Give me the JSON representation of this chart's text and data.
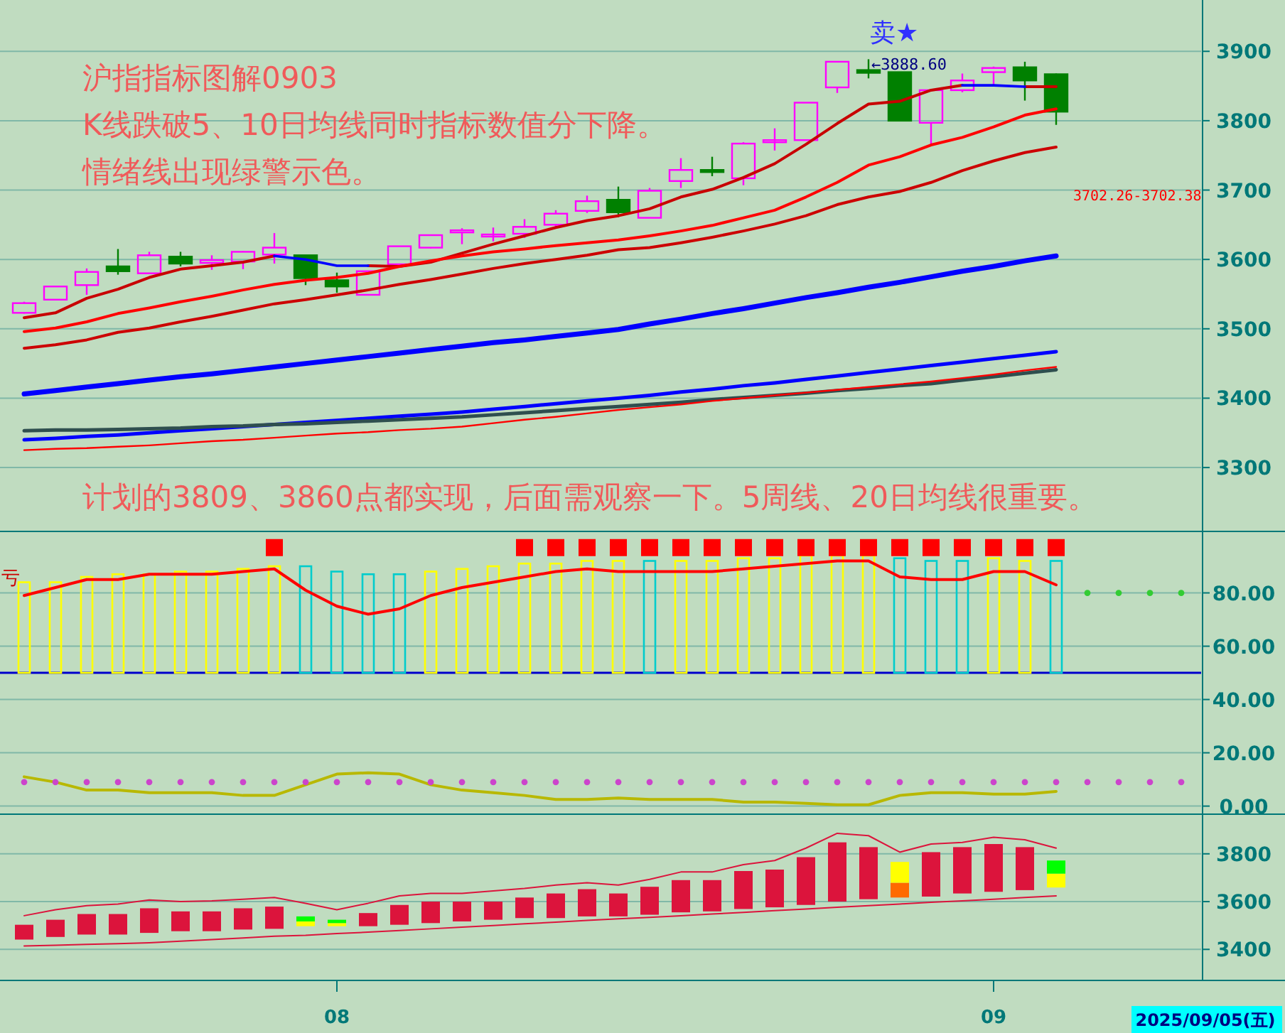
{
  "chart_data": [
    {
      "type": "candlestick",
      "title": "沪指指标图解0903",
      "subtitle": "K线跌破5、10日均线同时指标数值分下降。",
      "categories": [
        null,
        null,
        null,
        null,
        null,
        null,
        null,
        null,
        null,
        null,
        null,
        null,
        null,
        null,
        null,
        null,
        null,
        null,
        null,
        null,
        null,
        null,
        null,
        null,
        null,
        null,
        null,
        null,
        null,
        null,
        null,
        null,
        null,
        null,
        null,
        null,
        null,
        null
      ],
      "ohlc": [
        [
          3523,
          3539,
          3522,
          3537
        ],
        [
          3542,
          3561,
          3542,
          3561
        ],
        [
          3563,
          3587,
          3549,
          3582
        ],
        [
          3590,
          3615,
          3578,
          3583
        ],
        [
          3580,
          3611,
          3580,
          3606
        ],
        [
          3604,
          3611,
          3590,
          3594
        ],
        [
          3595,
          3606,
          3585,
          3599
        ],
        [
          3597,
          3612,
          3586,
          3611
        ],
        [
          3607,
          3638,
          3594,
          3617
        ],
        [
          3606,
          3606,
          3563,
          3573
        ],
        [
          3570,
          3581,
          3552,
          3561
        ],
        [
          3549,
          3583,
          3549,
          3583
        ],
        [
          3593,
          3619,
          3592,
          3619
        ],
        [
          3617,
          3635,
          3616,
          3635
        ],
        [
          3639,
          3645,
          3622,
          3642
        ],
        [
          3635,
          3646,
          3626,
          3636
        ],
        [
          3637,
          3658,
          3631,
          3647
        ],
        [
          3650,
          3671,
          3647,
          3666
        ],
        [
          3670,
          3692,
          3667,
          3684
        ],
        [
          3686,
          3705,
          3661,
          3668
        ],
        [
          3660,
          3703,
          3660,
          3699
        ],
        [
          3713,
          3746,
          3703,
          3729
        ],
        [
          3729,
          3748,
          3720,
          3728
        ],
        [
          3717,
          3769,
          3707,
          3767
        ],
        [
          3771,
          3789,
          3757,
          3772
        ],
        [
          3772,
          3826,
          3772,
          3826
        ],
        [
          3848,
          3885,
          3840,
          3885
        ],
        [
          3873,
          3888.6,
          3861,
          3869
        ],
        [
          3870,
          3870,
          3800,
          3800
        ],
        [
          3797,
          3844,
          3766,
          3844
        ],
        [
          3844,
          3868,
          3841,
          3858
        ],
        [
          3870,
          3878,
          3851,
          3876
        ],
        [
          3877,
          3885,
          3829,
          3858
        ],
        [
          3867,
          3868,
          3794,
          3813
        ],
        null,
        null,
        null,
        null
      ],
      "colors": [
        "#ff00ff",
        "#ff00ff",
        "#ff00ff",
        "#008000",
        "#ff00ff",
        "#008000",
        "#ff00ff",
        "#ff00ff",
        "#ff00ff",
        "#008000",
        "#008000",
        "#ff00ff",
        "#ff00ff",
        "#ff00ff",
        "#ff00ff",
        "#ff00ff",
        "#ff00ff",
        "#ff00ff",
        "#ff00ff",
        "#008000",
        "#ff00ff",
        "#ff00ff",
        "#008000",
        "#ff00ff",
        "#ff00ff",
        "#ff00ff",
        "#ff00ff",
        "#008000",
        "#008000",
        "#ff00ff",
        "#ff00ff",
        "#ff00ff",
        "#008000",
        "#008000",
        null,
        null,
        null,
        null
      ],
      "series": [
        {
          "type": "line",
          "color": "#c80000",
          "values": [
            3516,
            3523,
            3544,
            3557,
            3574,
            3586,
            3591,
            3596,
            3605,
            null,
            null,
            3591,
            3590,
            3596,
            3609,
            3622,
            3634,
            3646,
            3656,
            3663,
            3673,
            3690,
            3701,
            3718,
            3738,
            3766,
            3796,
            3824,
            3828,
            3844,
            3851,
            null,
            3849,
            3849,
            null,
            null,
            null,
            null
          ]
        },
        {
          "type": "line",
          "color": "#0000ff",
          "values": [
            null,
            null,
            null,
            null,
            null,
            null,
            null,
            null,
            3605,
            3600,
            3591,
            3591,
            null,
            null,
            null,
            null,
            null,
            null,
            null,
            null,
            null,
            null,
            null,
            null,
            null,
            null,
            null,
            null,
            null,
            null,
            3851,
            3851,
            3849,
            null,
            null,
            null,
            null,
            null
          ]
        },
        {
          "type": "line",
          "color": "#ff0000",
          "values": [
            3496,
            3501,
            3510,
            3522,
            3530,
            3539,
            3547,
            3556,
            3564,
            3570,
            3574,
            3580,
            3590,
            3598,
            3605,
            3611,
            3615,
            3620,
            3624,
            3628,
            3634,
            3641,
            3649,
            3660,
            3671,
            3690,
            3711,
            3736,
            3748,
            3765,
            3776,
            3791,
            3808,
            3817,
            null,
            null,
            null,
            null
          ]
        },
        {
          "type": "line",
          "color": "#cc0000",
          "values": [
            3472,
            3477,
            3484,
            3495,
            3501,
            3510,
            3518,
            3527,
            3536,
            3542,
            3549,
            3556,
            3564,
            3571,
            3579,
            3587,
            3594,
            3600,
            3606,
            3614,
            3617,
            3624,
            3632,
            3641,
            3651,
            3663,
            3679,
            3690,
            3698,
            3711,
            3728,
            3742,
            3754,
            3762,
            null,
            null,
            null,
            null
          ]
        },
        {
          "type": "line",
          "color": "#0000ff",
          "values": [
            3406,
            3411,
            3416,
            3421,
            3426,
            3431,
            3435,
            3440,
            3445,
            3450,
            3455,
            3460,
            3465,
            3470,
            3475,
            3480,
            3484,
            3489,
            3494,
            3499,
            3507,
            3514,
            3522,
            3529,
            3537,
            3545,
            3552,
            3560,
            3567,
            3575,
            3583,
            3590,
            3598,
            3605,
            null,
            null,
            null,
            null
          ]
        },
        {
          "type": "line",
          "color": "#0000ff",
          "values": [
            3340,
            3342,
            3345,
            3347,
            3350,
            3353,
            3356,
            3359,
            3362,
            3365,
            3368,
            3371,
            3374,
            3377,
            3380,
            3384,
            3388,
            3392,
            3396,
            3400,
            3404,
            3409,
            3413,
            3418,
            3422,
            3427,
            3432,
            3437,
            3442,
            3447,
            3452,
            3457,
            3462,
            3467,
            null,
            null,
            null,
            null
          ]
        },
        {
          "type": "line",
          "color": "#2f4f4f",
          "values": [
            3353,
            3354,
            3354,
            3355,
            3356,
            3357,
            3359,
            3360,
            3362,
            3363,
            3365,
            3367,
            3369,
            3371,
            3373,
            3376,
            3379,
            3382,
            3385,
            3388,
            3391,
            3394,
            3398,
            3401,
            3404,
            3407,
            3411,
            3414,
            3418,
            3421,
            3426,
            3431,
            3436,
            3441,
            null,
            null,
            null,
            null
          ]
        },
        {
          "type": "line",
          "color": "#ff0000",
          "values": [
            3325,
            3327,
            3328,
            3330,
            3332,
            3335,
            3338,
            3340,
            3343,
            3346,
            3349,
            3351,
            3354,
            3356,
            3359,
            3364,
            3369,
            3373,
            3378,
            3383,
            3387,
            3391,
            3396,
            3400,
            3404,
            3408,
            3412,
            3416,
            3420,
            3424,
            3429,
            3434,
            3440,
            3445,
            null,
            null,
            null,
            null
          ]
        }
      ],
      "annotations": [
        "情绪线出现绿警示色。",
        "计划的3809、3860点都实现，后面需观察一下。5周线、20日均线很重要。",
        "卖★",
        "←3888.60",
        "3702.26-3702.38"
      ],
      "ylim": [
        3212,
        3974
      ],
      "yticks": [
        3300,
        3400,
        3500,
        3600,
        3700,
        3800,
        3900
      ],
      "grid": "y",
      "tick_labels": "y"
    },
    {
      "type": "bar",
      "categories": [
        null,
        null,
        null,
        null,
        null,
        null,
        null,
        null,
        null,
        null,
        null,
        null,
        null,
        null,
        null,
        null,
        null,
        null,
        null,
        null,
        null,
        null,
        null,
        null,
        null,
        null,
        null,
        null,
        null,
        null,
        null,
        null,
        null,
        null,
        null,
        null,
        null,
        null
      ],
      "series": [
        {
          "type": "bar",
          "base": [
            50,
            50,
            50,
            50,
            50,
            50,
            50,
            50,
            50,
            50,
            50,
            50,
            50,
            50,
            50,
            50,
            50,
            50,
            50,
            50,
            50,
            50,
            50,
            50,
            50,
            50,
            50,
            50,
            50,
            50,
            50,
            50,
            50,
            50,
            null,
            null,
            null,
            null
          ],
          "colors": [
            "#ffff00",
            "#ffff00",
            "#ffff00",
            "#ffff00",
            "#ffff00",
            "#ffff00",
            "#ffff00",
            "#ffff00",
            "#ffff00",
            "#00cccc",
            "#00cccc",
            "#00cccc",
            "#00cccc",
            "#ffff00",
            "#ffff00",
            "#ffff00",
            "#ffff00",
            "#ffff00",
            "#ffff00",
            "#ffff00",
            "#00cccc",
            "#ffff00",
            "#ffff00",
            "#ffff00",
            "#ffff00",
            "#ffff00",
            "#ffff00",
            "#ffff00",
            "#00cccc",
            "#00cccc",
            "#00cccc",
            "#ffff00",
            "#ffff00",
            "#00cccc",
            null,
            null,
            null,
            null
          ],
          "values": [
            34,
            34,
            36,
            37,
            37,
            38,
            38,
            39,
            40,
            40,
            38,
            37,
            37,
            38,
            39,
            40,
            41,
            41,
            42,
            42,
            42,
            42,
            42,
            43,
            43,
            44,
            44,
            44,
            43,
            42,
            42,
            43,
            42,
            42,
            null,
            null,
            null,
            null
          ]
        },
        {
          "type": "line",
          "color": "#ff0000",
          "values": [
            79,
            82,
            85,
            85,
            87,
            87,
            87,
            88,
            89,
            81,
            75,
            72,
            74,
            79,
            82,
            84,
            86,
            88,
            89,
            88,
            88,
            88,
            88,
            89,
            90,
            91,
            92,
            92,
            86,
            85,
            85,
            88,
            88,
            83,
            null,
            null,
            null,
            null
          ]
        },
        {
          "type": "line",
          "color": "#b8b800",
          "values": [
            11,
            9,
            6,
            6,
            5,
            5,
            5,
            4,
            4,
            8,
            12,
            12.5,
            12,
            8,
            6,
            5,
            4,
            2.5,
            2.5,
            3,
            2.5,
            2.5,
            2.5,
            1.5,
            1.5,
            1,
            0.5,
            0.5,
            4,
            5,
            5,
            4.5,
            4.5,
            5.5,
            null,
            null,
            null,
            null
          ]
        },
        {
          "type": "scatter",
          "marker": "square",
          "color": "#ff0000",
          "values": [
            null,
            null,
            null,
            null,
            null,
            null,
            null,
            null,
            97,
            null,
            null,
            null,
            null,
            null,
            null,
            null,
            97,
            97,
            97,
            97,
            97,
            97,
            97,
            97,
            97,
            97,
            97,
            97,
            97,
            97,
            97,
            97,
            97,
            97,
            null,
            null,
            null,
            null
          ]
        },
        {
          "type": "scatter",
          "marker": "circle",
          "color": "#cc44cc",
          "values": [
            9,
            9,
            9,
            9,
            9,
            9,
            9,
            9,
            9,
            9,
            9,
            9,
            9,
            9,
            9,
            9,
            9,
            9,
            9,
            9,
            9,
            9,
            9,
            9,
            9,
            9,
            9,
            9,
            9,
            9,
            9,
            9,
            9,
            9,
            9,
            9,
            9,
            9
          ]
        },
        {
          "type": "scatter",
          "marker": "circle",
          "color": "#33cc33",
          "values": [
            null,
            null,
            null,
            null,
            null,
            null,
            null,
            null,
            null,
            null,
            null,
            null,
            null,
            null,
            null,
            null,
            null,
            null,
            null,
            null,
            null,
            null,
            null,
            null,
            null,
            null,
            null,
            null,
            null,
            null,
            null,
            null,
            null,
            null,
            80,
            80,
            80,
            80
          ]
        }
      ],
      "ref_lines": [
        {
          "axis": "y",
          "value": 50,
          "color": "#0000cc"
        }
      ],
      "annotations": [
        "亏"
      ],
      "ylim": [
        -2.5,
        102
      ],
      "yticks": [
        {
          "value": 0,
          "label": "0.00"
        },
        {
          "value": 20,
          "label": "20.00"
        },
        {
          "value": 40,
          "label": "40.00"
        },
        {
          "value": 60,
          "label": "60.00"
        },
        {
          "value": 80,
          "label": "80.00"
        }
      ],
      "grid": "y",
      "tick_labels": "y"
    },
    {
      "type": "bar",
      "categories": [
        null,
        null,
        null,
        null,
        null,
        null,
        null,
        null,
        null,
        null,
        "08",
        null,
        null,
        null,
        null,
        null,
        null,
        null,
        null,
        null,
        null,
        null,
        null,
        null,
        null,
        null,
        null,
        null,
        null,
        null,
        null,
        "09",
        null,
        null,
        null,
        null,
        null,
        null
      ],
      "series": [
        {
          "type": "bar",
          "base": [
            3441,
            3452,
            3462,
            3462,
            3469,
            3476,
            3476,
            3483,
            3486,
            3497,
            3497,
            3497,
            3503,
            3510,
            3517,
            3524,
            3531,
            3531,
            3538,
            3538,
            3545,
            3555,
            3559,
            3569,
            3576,
            3586,
            3600,
            3610,
            3617,
            3621,
            3634,
            3641,
            3648,
            3659,
            null,
            null,
            null,
            null
          ],
          "colors": [
            "#dc143c",
            "#dc143c",
            "#dc143c",
            "#dc143c",
            "#dc143c",
            "#dc143c",
            "#dc143c",
            "#dc143c",
            "#dc143c",
            "#ffff00",
            "#ffff00",
            "#dc143c",
            "#dc143c",
            "#dc143c",
            "#dc143c",
            "#dc143c",
            "#dc143c",
            "#dc143c",
            "#dc143c",
            "#dc143c",
            "#dc143c",
            "#dc143c",
            "#dc143c",
            "#dc143c",
            "#dc143c",
            "#dc143c",
            "#dc143c",
            "#dc143c",
            "#ff6a00",
            "#dc143c",
            "#dc143c",
            "#dc143c",
            "#dc143c",
            "#ffff00",
            null,
            null,
            null,
            null
          ],
          "values": [
            62,
            72,
            86,
            86,
            103,
            83,
            83,
            89,
            93,
            20,
            13,
            55,
            83,
            90,
            83,
            76,
            86,
            103,
            114,
            96,
            117,
            135,
            131,
            159,
            158,
            200,
            248,
            218,
            62,
            186,
            194,
            200,
            180,
            58,
            null,
            null,
            null,
            null
          ]
        },
        {
          "type": "bar",
          "base": [
            null,
            null,
            null,
            null,
            null,
            null,
            null,
            null,
            null,
            3517,
            3510,
            null,
            null,
            null,
            null,
            null,
            null,
            null,
            null,
            null,
            null,
            null,
            null,
            null,
            null,
            null,
            null,
            null,
            3679,
            null,
            null,
            null,
            null,
            3717,
            null,
            null,
            null,
            null
          ],
          "colors": [
            null,
            null,
            null,
            null,
            null,
            null,
            null,
            null,
            null,
            "#00ff00",
            "#00ff00",
            null,
            null,
            null,
            null,
            null,
            null,
            null,
            null,
            null,
            null,
            null,
            null,
            null,
            null,
            null,
            null,
            null,
            "#ffff00",
            null,
            null,
            null,
            null,
            "#00ff00",
            null,
            null,
            null,
            null
          ],
          "values": [
            null,
            null,
            null,
            null,
            null,
            null,
            null,
            null,
            null,
            21,
            14,
            null,
            null,
            null,
            null,
            null,
            null,
            null,
            null,
            null,
            null,
            null,
            null,
            null,
            null,
            null,
            null,
            null,
            87,
            null,
            null,
            null,
            null,
            55,
            null,
            null,
            null,
            null
          ]
        },
        {
          "type": "line",
          "color": "#dc143c",
          "values": [
            3541,
            3566,
            3583,
            3590,
            3607,
            3600,
            3603,
            3610,
            3617,
            3593,
            3566,
            3593,
            3624,
            3634,
            3634,
            3645,
            3655,
            3669,
            3679,
            3669,
            3693,
            3724,
            3724,
            3755,
            3772,
            3824,
            3886,
            3876,
            3807,
            3841,
            3848,
            3869,
            3859,
            3824,
            null,
            null,
            null,
            null
          ]
        },
        {
          "type": "line",
          "color": "#dc143c",
          "values": [
            3414,
            3417,
            3421,
            3424,
            3428,
            3434,
            3441,
            3448,
            3455,
            3459,
            3466,
            3472,
            3479,
            3486,
            3493,
            3500,
            3507,
            3514,
            3521,
            3528,
            3534,
            3541,
            3548,
            3555,
            3562,
            3569,
            3576,
            3583,
            3590,
            3597,
            3603,
            3610,
            3617,
            3624,
            null,
            null,
            null,
            null
          ]
        }
      ],
      "annotations": [
        "2025/09/05(五)"
      ],
      "ylim": [
        3270,
        3960
      ],
      "yticks": [
        3400,
        3600,
        3800
      ],
      "grid": "y"
    }
  ]
}
